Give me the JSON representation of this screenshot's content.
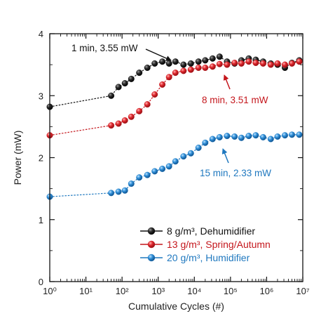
{
  "chart_data": {
    "type": "line",
    "xlabel": "Cumulative Cycles (#)",
    "ylabel": "Power (mW)",
    "xscale": "log",
    "xlim": [
      1,
      10000000
    ],
    "ylim": [
      0,
      4
    ],
    "x_ticks": [
      {
        "value": 1,
        "label": "10⁰"
      },
      {
        "value": 10,
        "label": "10¹"
      },
      {
        "value": 100,
        "label": "10²"
      },
      {
        "value": 1000,
        "label": "10³"
      },
      {
        "value": 10000,
        "label": "10⁴"
      },
      {
        "value": 100000,
        "label": "10⁵"
      },
      {
        "value": 1000000,
        "label": "10⁶"
      },
      {
        "value": 10000000,
        "label": "10⁷"
      }
    ],
    "y_ticks": [
      {
        "value": 0,
        "label": "0"
      },
      {
        "value": 1,
        "label": "1"
      },
      {
        "value": 2,
        "label": "2"
      },
      {
        "value": 3,
        "label": "3"
      },
      {
        "value": 4,
        "label": "4"
      }
    ],
    "legend_position": "bottom-right",
    "series": [
      {
        "name": "8 g/m³, Dehumidifier",
        "color": "#111111",
        "points": [
          [
            1,
            2.82
          ],
          [
            50,
            3.0
          ],
          [
            80,
            3.14
          ],
          [
            120,
            3.2
          ],
          [
            180,
            3.27
          ],
          [
            300,
            3.37
          ],
          [
            500,
            3.45
          ],
          [
            800,
            3.52
          ],
          [
            1300,
            3.55
          ],
          [
            2000,
            3.52
          ],
          [
            3000,
            3.55
          ],
          [
            5000,
            3.5
          ],
          [
            8000,
            3.52
          ],
          [
            13000,
            3.55
          ],
          [
            20000,
            3.57
          ],
          [
            32000,
            3.6
          ],
          [
            50000,
            3.63
          ],
          [
            80000,
            3.55
          ],
          [
            130000,
            3.52
          ],
          [
            200000,
            3.57
          ],
          [
            320000,
            3.6
          ],
          [
            500000,
            3.58
          ],
          [
            800000,
            3.55
          ],
          [
            1300000,
            3.52
          ],
          [
            2000000,
            3.5
          ],
          [
            3200000,
            3.45
          ],
          [
            5000000,
            3.53
          ],
          [
            8000000,
            3.57
          ]
        ]
      },
      {
        "name": "13 g/m³, Spring/Autumn",
        "color": "#c4161c",
        "points": [
          [
            1,
            2.36
          ],
          [
            50,
            2.52
          ],
          [
            80,
            2.55
          ],
          [
            120,
            2.6
          ],
          [
            180,
            2.66
          ],
          [
            300,
            2.75
          ],
          [
            500,
            2.86
          ],
          [
            800,
            3.02
          ],
          [
            1300,
            3.18
          ],
          [
            2000,
            3.3
          ],
          [
            3000,
            3.37
          ],
          [
            5000,
            3.4
          ],
          [
            8000,
            3.42
          ],
          [
            13000,
            3.45
          ],
          [
            20000,
            3.45
          ],
          [
            32000,
            3.47
          ],
          [
            50000,
            3.51
          ],
          [
            80000,
            3.5
          ],
          [
            130000,
            3.53
          ],
          [
            200000,
            3.52
          ],
          [
            320000,
            3.55
          ],
          [
            500000,
            3.53
          ],
          [
            800000,
            3.52
          ],
          [
            1300000,
            3.5
          ],
          [
            2000000,
            3.52
          ],
          [
            3200000,
            3.5
          ],
          [
            5000000,
            3.52
          ],
          [
            8000000,
            3.55
          ]
        ]
      },
      {
        "name": "20 g/m³, Humidifier",
        "color": "#1f78bf",
        "points": [
          [
            1,
            1.37
          ],
          [
            50,
            1.43
          ],
          [
            80,
            1.45
          ],
          [
            120,
            1.47
          ],
          [
            180,
            1.58
          ],
          [
            300,
            1.68
          ],
          [
            500,
            1.72
          ],
          [
            800,
            1.78
          ],
          [
            1300,
            1.82
          ],
          [
            2000,
            1.86
          ],
          [
            3000,
            1.94
          ],
          [
            5000,
            2.02
          ],
          [
            8000,
            2.07
          ],
          [
            13000,
            2.16
          ],
          [
            20000,
            2.24
          ],
          [
            32000,
            2.3
          ],
          [
            50000,
            2.33
          ],
          [
            80000,
            2.35
          ],
          [
            130000,
            2.34
          ],
          [
            200000,
            2.32
          ],
          [
            320000,
            2.35
          ],
          [
            500000,
            2.36
          ],
          [
            800000,
            2.33
          ],
          [
            1300000,
            2.3
          ],
          [
            2000000,
            2.34
          ],
          [
            3200000,
            2.36
          ],
          [
            5000000,
            2.37
          ],
          [
            8000000,
            2.37
          ]
        ]
      }
    ],
    "annotations": [
      {
        "text": "1 min, 3.55 mW",
        "color": "#111111",
        "point": [
          1300,
          3.55
        ]
      },
      {
        "text": "8 min, 3.51 mW",
        "color": "#c4161c",
        "point": [
          50000,
          3.51
        ]
      },
      {
        "text": "15 min, 2.33 mW",
        "color": "#1f78bf",
        "point": [
          50000,
          2.33
        ]
      }
    ]
  }
}
